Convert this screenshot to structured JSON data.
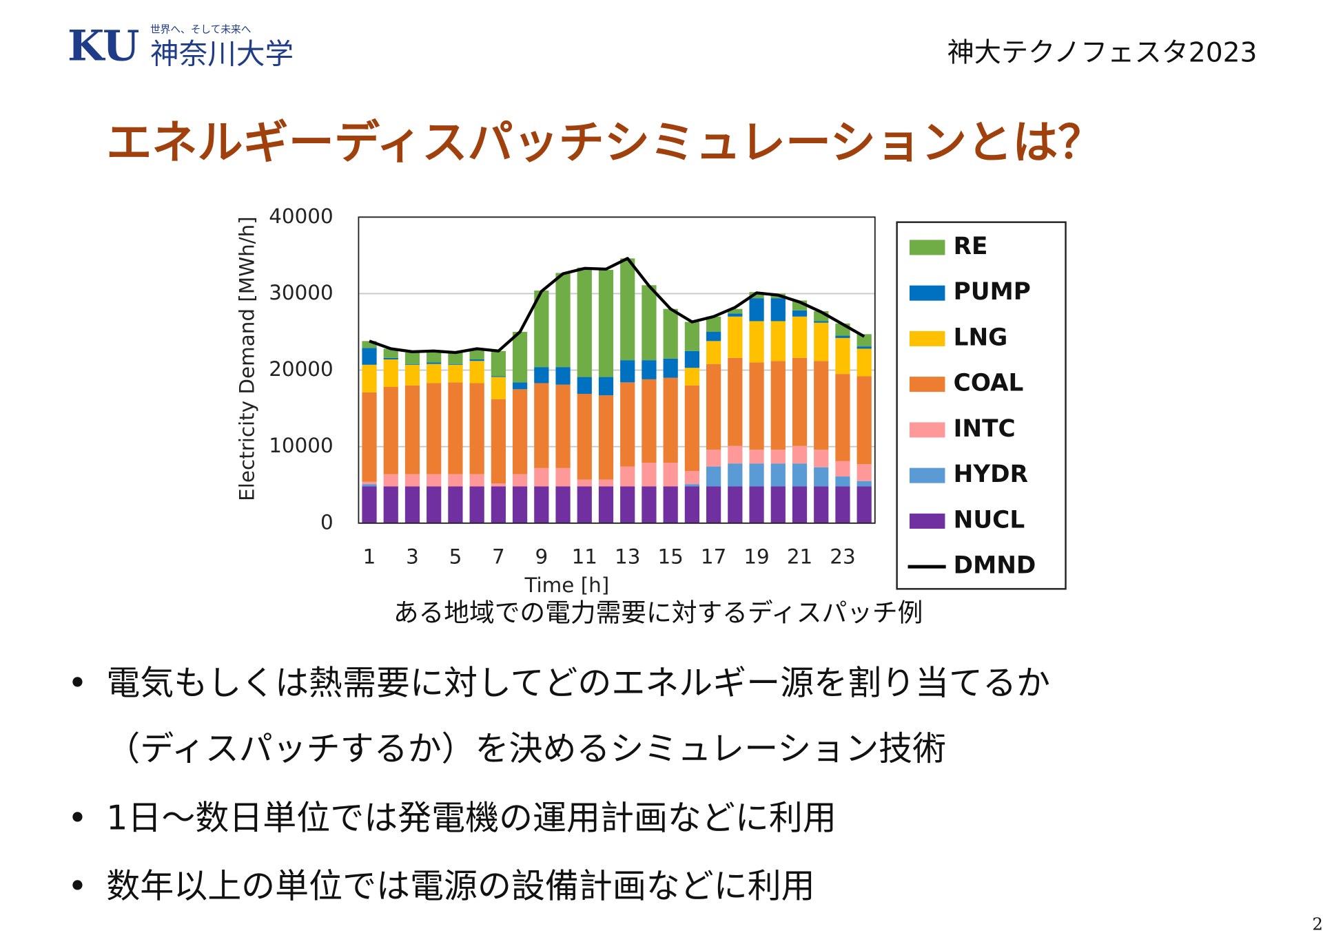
{
  "header": {
    "logo_mark": "KU",
    "logo_tagline": "世界へ、そして未来へ",
    "logo_name": "神奈川大学",
    "event": "神大テクノフェスタ2023"
  },
  "title": "エネルギーディスパッチシミュレーションとは？",
  "chart_data": {
    "type": "stacked_bar",
    "xlabel": "Time [h]",
    "ylabel": "Electricity Demand [MWh/h]",
    "categories": [
      "1",
      null,
      "3",
      null,
      "5",
      null,
      "7",
      null,
      "9",
      null,
      "11",
      null,
      "13",
      null,
      "15",
      null,
      "17",
      null,
      "19",
      null,
      "21",
      null,
      "23",
      null
    ],
    "ylim": [
      0,
      40000
    ],
    "yticks": [
      0,
      10000,
      20000,
      30000,
      40000
    ],
    "grid": true,
    "legend": "right",
    "series": [
      {
        "name": "NUCL",
        "color": "#7030a0",
        "values": [
          4800,
          4800,
          4800,
          4800,
          4800,
          4800,
          4800,
          4800,
          4800,
          4800,
          4800,
          4800,
          4800,
          4800,
          4800,
          4800,
          4800,
          4800,
          4800,
          4800,
          4800,
          4800,
          4800,
          4800
        ]
      },
      {
        "name": "HYDR",
        "color": "#5b9bd5",
        "values": [
          300,
          0,
          0,
          0,
          0,
          0,
          0,
          0,
          0,
          0,
          0,
          0,
          0,
          0,
          0,
          300,
          2600,
          3000,
          3000,
          3000,
          3000,
          2500,
          1300,
          700
        ]
      },
      {
        "name": "INTC",
        "color": "#ff9999",
        "values": [
          300,
          1600,
          1600,
          1600,
          1600,
          1600,
          400,
          1600,
          2400,
          2400,
          900,
          900,
          2600,
          3100,
          3100,
          1700,
          2200,
          2300,
          1800,
          1800,
          2300,
          2300,
          2000,
          2200
        ]
      },
      {
        "name": "COAL",
        "color": "#ed7d31",
        "values": [
          11700,
          11400,
          11600,
          11900,
          12000,
          11900,
          11000,
          11100,
          11100,
          10900,
          11200,
          11000,
          11000,
          10900,
          11100,
          11200,
          11200,
          11500,
          11400,
          11600,
          11500,
          11600,
          11400,
          11500
        ]
      },
      {
        "name": "LNG",
        "color": "#ffc000",
        "values": [
          3600,
          3600,
          2700,
          2500,
          2300,
          2900,
          2900,
          0,
          0,
          0,
          0,
          0,
          0,
          0,
          0,
          2300,
          3000,
          5400,
          5400,
          5200,
          5400,
          5000,
          4700,
          3600
        ]
      },
      {
        "name": "PUMP",
        "color": "#0070c0",
        "values": [
          2200,
          200,
          100,
          200,
          100,
          200,
          100,
          900,
          2100,
          2300,
          2200,
          2400,
          2900,
          2500,
          2500,
          2200,
          1200,
          400,
          3000,
          3000,
          800,
          200,
          300,
          300
        ]
      },
      {
        "name": "RE",
        "color": "#70ad47",
        "values": [
          900,
          1200,
          1500,
          1400,
          1500,
          1300,
          3300,
          6600,
          10000,
          12300,
          14300,
          14000,
          13300,
          9800,
          6500,
          3800,
          2000,
          600,
          800,
          600,
          1300,
          1300,
          1600,
          1600
        ]
      },
      {
        "name": "DMND",
        "color": "#000000",
        "type": "line",
        "values": [
          23800,
          22800,
          22400,
          22500,
          22300,
          22800,
          22500,
          25000,
          30300,
          32600,
          33300,
          33200,
          34600,
          31000,
          28000,
          26300,
          27000,
          28200,
          30100,
          29800,
          28900,
          27600,
          26000,
          24400
        ]
      }
    ]
  },
  "caption": "ある地域での電力需要に対するディスパッチ例",
  "bullets": [
    {
      "lines": [
        "電気もしくは熱需要に対してどのエネルギー源を割り当てるか",
        "（ディスパッチするか）を決めるシミュレーション技術"
      ]
    },
    {
      "lines": [
        "1日～数日単位では発電機の運用計画などに利用"
      ]
    },
    {
      "lines": [
        "数年以上の単位では電源の設備計画などに利用"
      ]
    }
  ],
  "bullet_mark": "•",
  "page_number": "2"
}
